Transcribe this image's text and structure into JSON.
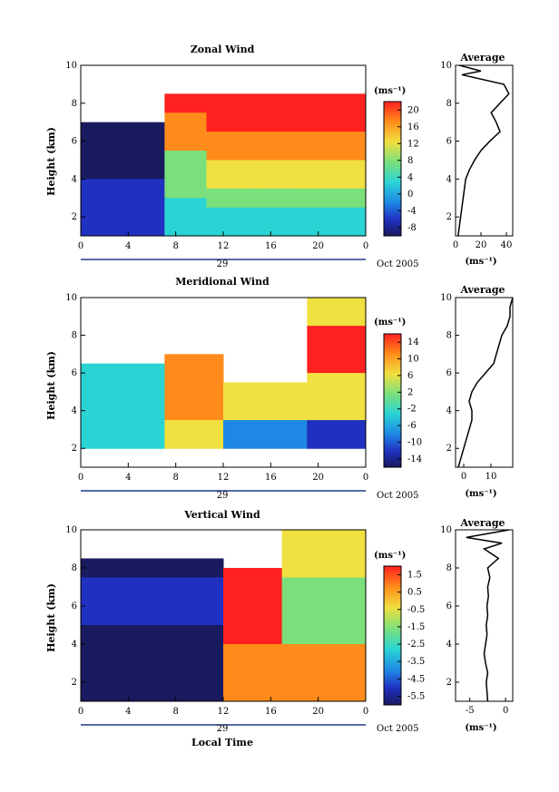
{
  "chart_data": [
    {
      "type": "heatmap",
      "title": "Zonal Wind",
      "ylabel": "Height (km)",
      "xlabel": "",
      "xticks": [
        "0",
        "4",
        "8",
        "12",
        "16",
        "20",
        "0"
      ],
      "yticks": [
        "2",
        "4",
        "6",
        "8",
        "10"
      ],
      "ylim": [
        1,
        10
      ],
      "date_label": "29",
      "date_suffix": "Oct 2005",
      "colorbar": {
        "unit": "(ms⁻¹)",
        "ticks": [
          "20",
          "16",
          "12",
          "8",
          "4",
          "0",
          "-4",
          "-8"
        ],
        "range": [
          -10,
          22
        ]
      },
      "average": {
        "title": "Average",
        "xlabel": "(ms⁻¹)",
        "xticks": [
          "0",
          "20",
          "40"
        ],
        "xlim": [
          0,
          45
        ],
        "yticks": [
          "2",
          "4",
          "6",
          "8",
          "10"
        ],
        "profile": [
          {
            "h": 1.0,
            "v": 2
          },
          {
            "h": 1.5,
            "v": 3
          },
          {
            "h": 2.0,
            "v": 4
          },
          {
            "h": 2.5,
            "v": 5
          },
          {
            "h": 3.0,
            "v": 6
          },
          {
            "h": 3.5,
            "v": 7
          },
          {
            "h": 4.0,
            "v": 8
          },
          {
            "h": 4.5,
            "v": 11
          },
          {
            "h": 5.0,
            "v": 15
          },
          {
            "h": 5.5,
            "v": 20
          },
          {
            "h": 6.0,
            "v": 27
          },
          {
            "h": 6.5,
            "v": 35
          },
          {
            "h": 7.0,
            "v": 32
          },
          {
            "h": 7.5,
            "v": 28
          },
          {
            "h": 8.0,
            "v": 35
          },
          {
            "h": 8.5,
            "v": 42
          },
          {
            "h": 9.0,
            "v": 38
          },
          {
            "h": 9.5,
            "v": 5
          },
          {
            "h": 9.7,
            "v": 20
          },
          {
            "h": 10.0,
            "v": 3
          }
        ]
      }
    },
    {
      "type": "heatmap",
      "title": "Meridional Wind",
      "ylabel": "Height (km)",
      "xlabel": "",
      "xticks": [
        "0",
        "4",
        "8",
        "12",
        "16",
        "20",
        "0"
      ],
      "yticks": [
        "2",
        "4",
        "6",
        "8",
        "10"
      ],
      "ylim": [
        1,
        10
      ],
      "date_label": "29",
      "date_suffix": "Oct 2005",
      "colorbar": {
        "unit": "(ms⁻¹)",
        "ticks": [
          "14",
          "10",
          "6",
          "2",
          "-2",
          "-6",
          "-10",
          "-14"
        ],
        "range": [
          -16,
          16
        ]
      },
      "average": {
        "title": "Average",
        "xlabel": "(ms⁻¹)",
        "xticks": [
          "0",
          "10"
        ],
        "xlim": [
          -3,
          18
        ],
        "yticks": [
          "2",
          "4",
          "6",
          "8",
          "10"
        ],
        "profile": [
          {
            "h": 1.0,
            "v": -2
          },
          {
            "h": 1.5,
            "v": -1
          },
          {
            "h": 2.0,
            "v": 0
          },
          {
            "h": 2.5,
            "v": 1
          },
          {
            "h": 3.0,
            "v": 2
          },
          {
            "h": 3.5,
            "v": 3
          },
          {
            "h": 4.0,
            "v": 3
          },
          {
            "h": 4.5,
            "v": 2
          },
          {
            "h": 5.0,
            "v": 3
          },
          {
            "h": 5.5,
            "v": 5
          },
          {
            "h": 6.0,
            "v": 8
          },
          {
            "h": 6.5,
            "v": 11
          },
          {
            "h": 7.0,
            "v": 12
          },
          {
            "h": 7.5,
            "v": 13
          },
          {
            "h": 8.0,
            "v": 14
          },
          {
            "h": 8.5,
            "v": 16
          },
          {
            "h": 9.0,
            "v": 17
          },
          {
            "h": 9.5,
            "v": 17
          },
          {
            "h": 10.0,
            "v": 18
          }
        ]
      }
    },
    {
      "type": "heatmap",
      "title": "Vertical Wind",
      "ylabel": "Height (km)",
      "xlabel": "Local Time",
      "xticks": [
        "0",
        "4",
        "8",
        "12",
        "16",
        "20",
        "0"
      ],
      "yticks": [
        "2",
        "4",
        "6",
        "8",
        "10"
      ],
      "ylim": [
        1,
        10
      ],
      "date_label": "29",
      "date_suffix": "Oct 2005",
      "colorbar": {
        "unit": "(ms⁻¹)",
        "ticks": [
          "1.5",
          "0.5",
          "-0.5",
          "-1.5",
          "-2.5",
          "-3.5",
          "-4.5",
          "-5.5"
        ],
        "range": [
          -6,
          2
        ]
      },
      "average": {
        "title": "Average",
        "xlabel": "(ms⁻¹)",
        "xticks": [
          "-5",
          "0"
        ],
        "xlim": [
          -7,
          1
        ],
        "yticks": [
          "2",
          "4",
          "6",
          "8",
          "10"
        ],
        "profile": [
          {
            "h": 1.0,
            "v": -2.5
          },
          {
            "h": 1.5,
            "v": -2.6
          },
          {
            "h": 2.0,
            "v": -2.7
          },
          {
            "h": 2.5,
            "v": -2.5
          },
          {
            "h": 3.0,
            "v": -2.8
          },
          {
            "h": 3.5,
            "v": -3.0
          },
          {
            "h": 4.0,
            "v": -2.8
          },
          {
            "h": 4.5,
            "v": -2.6
          },
          {
            "h": 5.0,
            "v": -2.7
          },
          {
            "h": 5.5,
            "v": -2.5
          },
          {
            "h": 6.0,
            "v": -2.6
          },
          {
            "h": 6.5,
            "v": -2.4
          },
          {
            "h": 7.0,
            "v": -2.5
          },
          {
            "h": 7.5,
            "v": -2.2
          },
          {
            "h": 8.0,
            "v": -2.5
          },
          {
            "h": 8.5,
            "v": -1.0
          },
          {
            "h": 9.0,
            "v": -3.0
          },
          {
            "h": 9.3,
            "v": -0.5
          },
          {
            "h": 9.6,
            "v": -5.5
          },
          {
            "h": 10.0,
            "v": 0.5
          }
        ]
      }
    }
  ]
}
